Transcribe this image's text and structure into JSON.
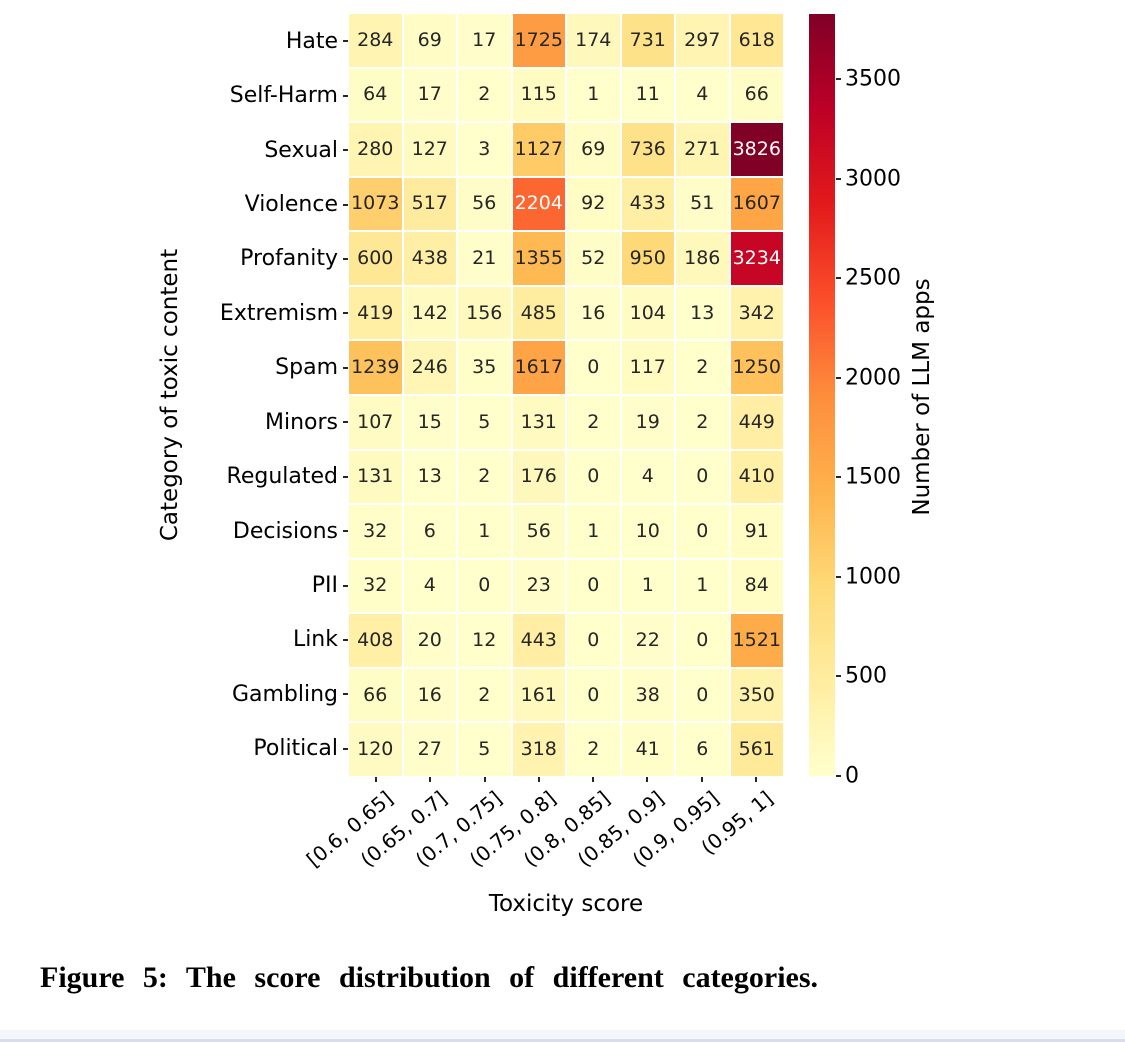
{
  "chart_data": {
    "type": "heatmap",
    "xlabel": "Toxicity score",
    "ylabel": "Category of toxic content",
    "colorbar_label": "Number of LLM apps",
    "colorbar_ticks": [
      0,
      500,
      1000,
      1500,
      2000,
      2500,
      3000,
      3500
    ],
    "x_categories": [
      "[0.6, 0.65]",
      "(0.65, 0.7]",
      "(0.7, 0.75]",
      "(0.75, 0.8]",
      "(0.8, 0.85]",
      "(0.85, 0.9]",
      "(0.9, 0.95]",
      "(0.95, 1]"
    ],
    "y_categories": [
      "Hate",
      "Self-Harm",
      "Sexual",
      "Violence",
      "Profanity",
      "Extremism",
      "Spam",
      "Minors",
      "Regulated",
      "Decisions",
      "PII",
      "Link",
      "Gambling",
      "Political"
    ],
    "values": [
      [
        284,
        69,
        17,
        1725,
        174,
        731,
        297,
        618
      ],
      [
        64,
        17,
        2,
        115,
        1,
        11,
        4,
        66
      ],
      [
        280,
        127,
        3,
        1127,
        69,
        736,
        271,
        3826
      ],
      [
        1073,
        517,
        56,
        2204,
        92,
        433,
        51,
        1607
      ],
      [
        600,
        438,
        21,
        1355,
        52,
        950,
        186,
        3234
      ],
      [
        419,
        142,
        156,
        485,
        16,
        104,
        13,
        342
      ],
      [
        1239,
        246,
        35,
        1617,
        0,
        117,
        2,
        1250
      ],
      [
        107,
        15,
        5,
        131,
        2,
        19,
        2,
        449
      ],
      [
        131,
        13,
        2,
        176,
        0,
        4,
        0,
        410
      ],
      [
        32,
        6,
        1,
        56,
        1,
        10,
        0,
        91
      ],
      [
        32,
        4,
        0,
        23,
        0,
        1,
        1,
        84
      ],
      [
        408,
        20,
        12,
        443,
        0,
        22,
        0,
        1521
      ],
      [
        66,
        16,
        2,
        161,
        0,
        38,
        0,
        350
      ],
      [
        120,
        27,
        5,
        318,
        2,
        41,
        6,
        561
      ]
    ],
    "vmin": 0,
    "vmax": 3826,
    "colormap": "YlOrRd",
    "colormap_stops": [
      [
        0.0,
        "#ffffcc"
      ],
      [
        0.125,
        "#ffeda0"
      ],
      [
        0.25,
        "#fed976"
      ],
      [
        0.375,
        "#feb24c"
      ],
      [
        0.5,
        "#fd8d3c"
      ],
      [
        0.625,
        "#fc4e2a"
      ],
      [
        0.75,
        "#e31a1c"
      ],
      [
        0.875,
        "#bd0026"
      ],
      [
        1.0,
        "#800026"
      ]
    ],
    "grid_line_color": "#ffffff",
    "annotation_dark_text": "#262626",
    "annotation_light_text": "#ffffff",
    "legend_position": "right-colorbar",
    "grid": false
  },
  "caption": {
    "text": "Figure 5: The score distribution of different categories."
  }
}
